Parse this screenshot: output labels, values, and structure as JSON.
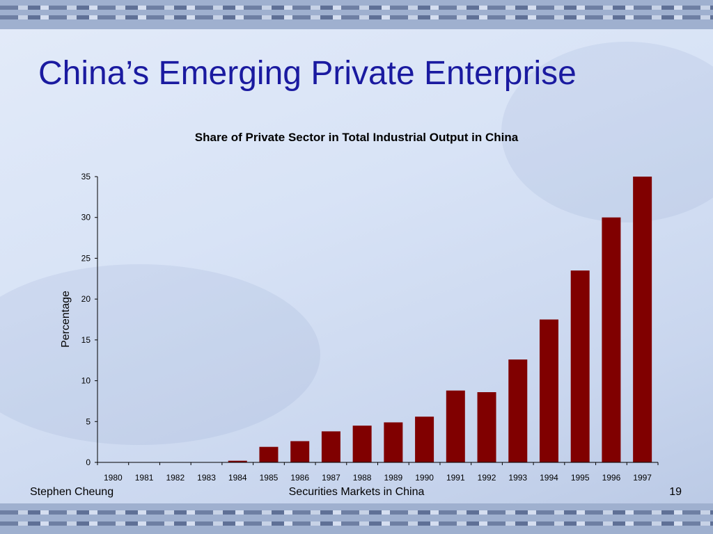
{
  "slide": {
    "title": "China’s Emerging Private Enterprise",
    "footer_left": "Stephen Cheung",
    "footer_center": "Securities Markets in China",
    "page_number": "19"
  },
  "colors": {
    "title": "#1a1aa0",
    "bar": "#800000",
    "axis": "#000000"
  },
  "chart_data": {
    "type": "bar",
    "title": "Share of Private Sector in Total Industrial Output in China",
    "xlabel": "",
    "ylabel": "Percentage",
    "ylim": [
      0,
      35
    ],
    "yticks": [
      0,
      5,
      10,
      15,
      20,
      25,
      30,
      35
    ],
    "grid": false,
    "legend": "none",
    "categories": [
      "1980",
      "1981",
      "1982",
      "1983",
      "1984",
      "1985",
      "1986",
      "1987",
      "1988",
      "1989",
      "1990",
      "1991",
      "1992",
      "1993",
      "1994",
      "1995",
      "1996",
      "1997"
    ],
    "values": [
      0,
      0,
      0,
      0,
      0.2,
      1.9,
      2.6,
      3.8,
      4.5,
      4.9,
      5.6,
      8.8,
      8.6,
      12.6,
      17.5,
      23.5,
      30,
      35
    ]
  }
}
